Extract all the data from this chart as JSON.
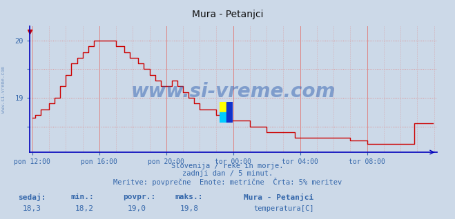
{
  "title": "Mura - Petanjci",
  "background_color": "#ccd9e8",
  "plot_bg_color": "#ccd9e8",
  "line_color": "#cc0000",
  "grid_color_major": "#dd8888",
  "grid_color_minor": "#ddaaaa",
  "axis_color": "#0000bb",
  "text_color": "#3366aa",
  "x_tick_labels": [
    "pon 12:00",
    "pon 16:00",
    "pon 20:00",
    "tor 00:00",
    "tor 04:00",
    "tor 08:00"
  ],
  "x_tick_positions": [
    0,
    48,
    96,
    144,
    192,
    240
  ],
  "ylim": [
    18.05,
    20.25
  ],
  "xlim": [
    -2,
    290
  ],
  "subtitle1": "Slovenija / reke in morje.",
  "subtitle2": "zadnji dan / 5 minut.",
  "subtitle3": "Meritve: povprečne  Enote: metrične  Črta: 5% meritev",
  "stat_label1": "sedaj:",
  "stat_label2": "min.:",
  "stat_label3": "povpr.:",
  "stat_label4": "maks.:",
  "stat_val1": "18,3",
  "stat_val2": "18,2",
  "stat_val3": "19,0",
  "stat_val4": "19,8",
  "legend_title": "Mura - Petanjci",
  "legend_label": "temperatura[C]",
  "watermark": "www.si-vreme.com",
  "watermark_color": "#2255aa",
  "side_label": "www.si-vreme.com"
}
